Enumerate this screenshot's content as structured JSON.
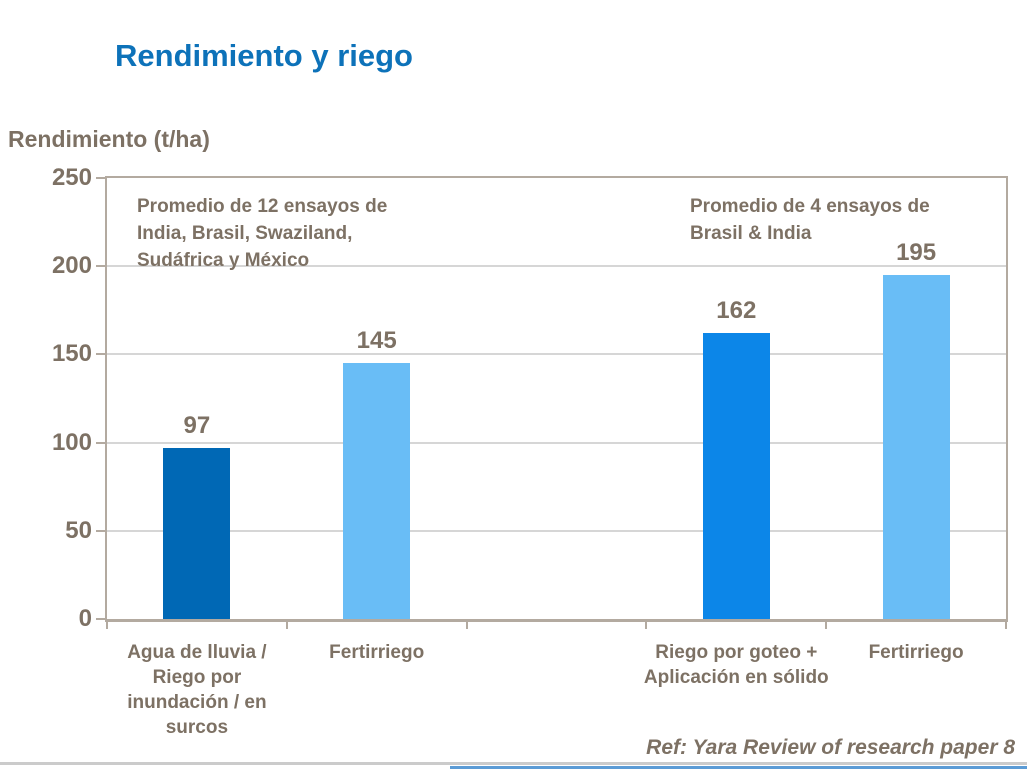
{
  "header": {
    "title": "Rendimiento y riego"
  },
  "footer": {
    "ref": "Ref: Yara Review of research paper 8"
  },
  "colors": {
    "title_blue": "#0D72B9",
    "text_brown": "#7D7164",
    "axis_gray": "#B3AAA0",
    "gridline_gray": "#D6D6D6",
    "bottom_rule_gray": "#CBCBCB",
    "bottom_rule_blue": "#5B9BD5"
  },
  "chart_data": {
    "type": "bar",
    "title": "Rendimiento y riego",
    "xlabel": "",
    "ylabel": "Rendimiento (t/ha)",
    "ylim": [
      0,
      250
    ],
    "yticks": [
      0,
      50,
      100,
      150,
      200,
      250
    ],
    "grid": true,
    "legend": false,
    "categories": [
      "Agua de lluvia / Riego por inundación / en surcos",
      "Fertirriego",
      "",
      "Riego por goteo + Aplicación en sólido",
      "Fertirriego"
    ],
    "values": [
      97,
      145,
      null,
      162,
      195
    ],
    "bar_colors": [
      "#0068B5",
      "#69BDF6",
      null,
      "#0C86E8",
      "#69BDF6"
    ],
    "annotations": [
      {
        "position": "left",
        "text": "Promedio de 12 ensayos de India, Brasil, Swaziland, Sudáfrica y México"
      },
      {
        "position": "right",
        "text": "Promedio de 4 ensayos de Brasil & India"
      }
    ]
  }
}
